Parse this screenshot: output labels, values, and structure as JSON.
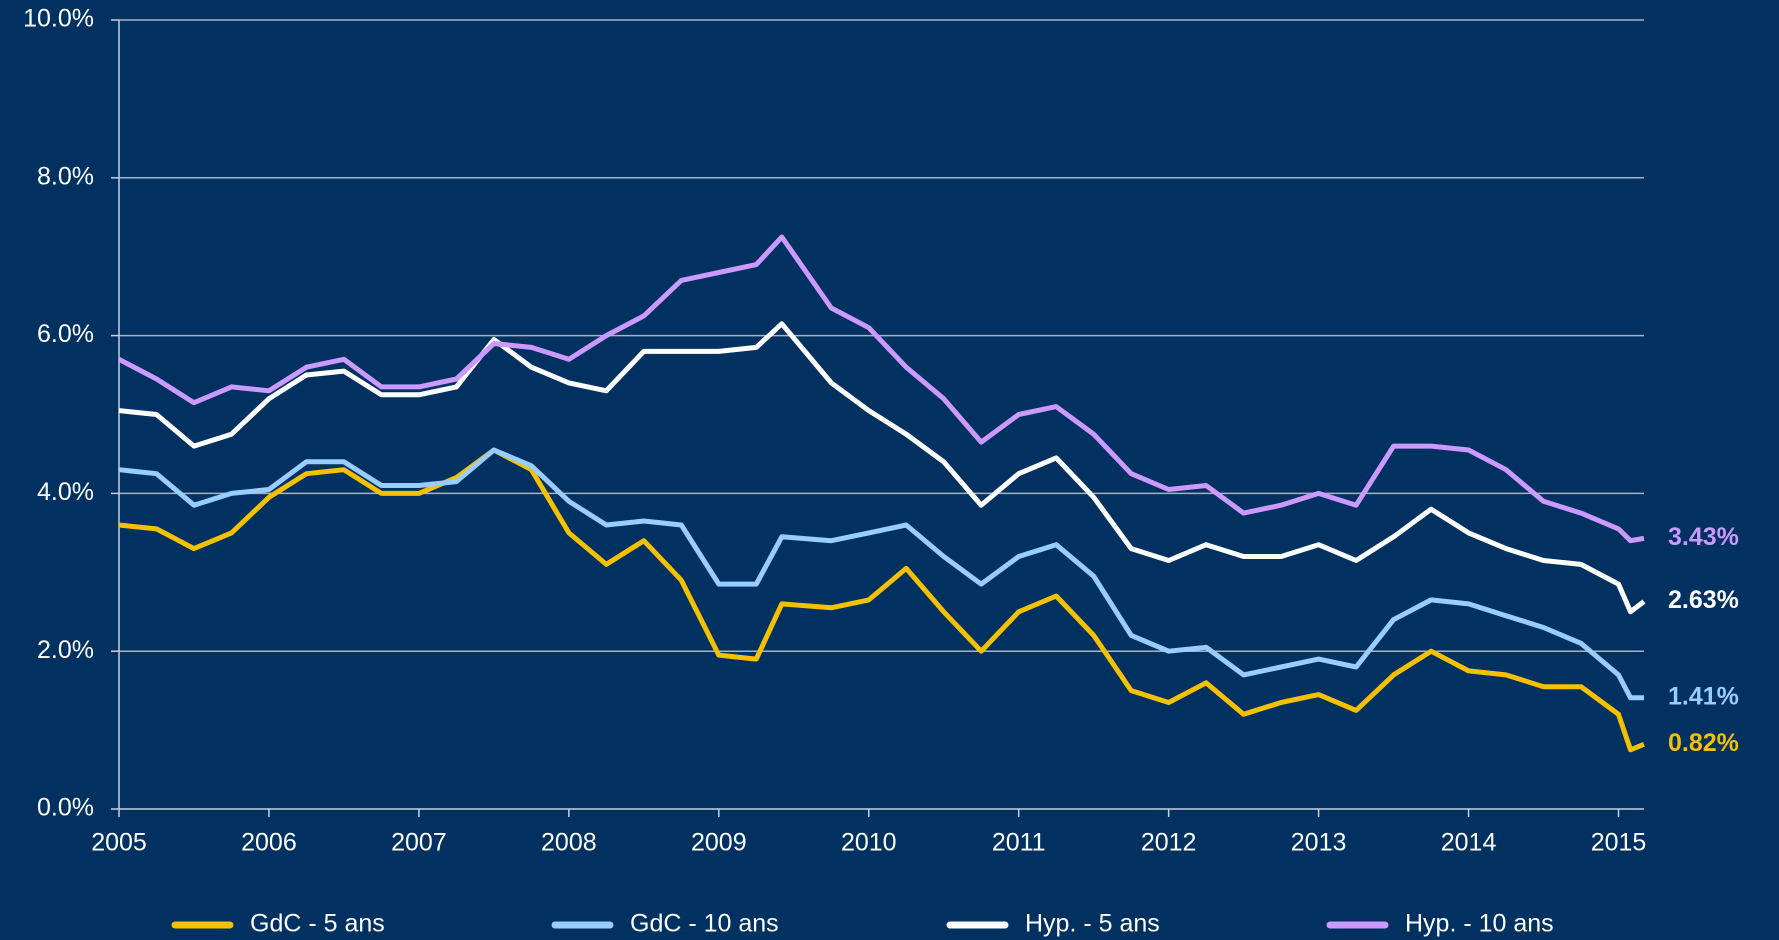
{
  "chart_data": {
    "type": "line",
    "x": [
      2005,
      2005.25,
      2005.5,
      2005.75,
      2006,
      2006.25,
      2006.5,
      2006.75,
      2007,
      2007.25,
      2007.5,
      2007.75,
      2008,
      2008.25,
      2008.5,
      2008.75,
      2009,
      2009.25,
      2009.42,
      2009.75,
      2010,
      2010.25,
      2010.5,
      2010.75,
      2011,
      2011.25,
      2011.5,
      2011.75,
      2012,
      2012.25,
      2012.5,
      2012.75,
      2013,
      2013.25,
      2013.5,
      2013.75,
      2014,
      2014.25,
      2014.5,
      2014.75,
      2015,
      2015.08,
      2015.17
    ],
    "series": [
      {
        "name": "GdC - 5 ans",
        "color": "#f5c000",
        "end_label": "0.82%",
        "values": [
          3.6,
          3.55,
          3.3,
          3.5,
          3.95,
          4.25,
          4.3,
          4.0,
          4.0,
          4.2,
          4.55,
          4.3,
          3.5,
          3.1,
          3.4,
          2.9,
          1.95,
          1.9,
          2.6,
          2.55,
          2.65,
          3.05,
          2.5,
          2.0,
          2.5,
          2.7,
          2.2,
          1.5,
          1.35,
          1.6,
          1.2,
          1.35,
          1.45,
          1.25,
          1.7,
          2.0,
          1.75,
          1.7,
          1.55,
          1.55,
          1.2,
          0.75,
          0.82
        ]
      },
      {
        "name": "GdC - 10 ans",
        "color": "#99ccff",
        "end_label": "1.41%",
        "values": [
          4.3,
          4.25,
          3.85,
          4.0,
          4.05,
          4.4,
          4.4,
          4.1,
          4.1,
          4.15,
          4.55,
          4.35,
          3.9,
          3.6,
          3.65,
          3.6,
          2.85,
          2.85,
          3.45,
          3.4,
          3.5,
          3.6,
          3.2,
          2.85,
          3.2,
          3.35,
          2.95,
          2.2,
          2.0,
          2.05,
          1.7,
          1.8,
          1.9,
          1.8,
          2.4,
          2.65,
          2.6,
          2.45,
          2.3,
          2.1,
          1.7,
          1.41,
          1.41
        ]
      },
      {
        "name": "Hyp. - 5 ans",
        "color": "#ffffff",
        "end_label": "2.63%",
        "values": [
          5.05,
          5.0,
          4.6,
          4.75,
          5.2,
          5.5,
          5.55,
          5.25,
          5.25,
          5.35,
          5.95,
          5.6,
          5.4,
          5.3,
          5.8,
          5.8,
          5.8,
          5.85,
          6.15,
          5.4,
          5.05,
          4.75,
          4.4,
          3.85,
          4.25,
          4.45,
          3.95,
          3.3,
          3.15,
          3.35,
          3.2,
          3.2,
          3.35,
          3.15,
          3.45,
          3.8,
          3.5,
          3.3,
          3.15,
          3.1,
          2.85,
          2.5,
          2.63
        ]
      },
      {
        "name": "Hyp. - 10 ans",
        "color": "#cc99ff",
        "end_label": "3.43%",
        "values": [
          5.7,
          5.45,
          5.15,
          5.35,
          5.3,
          5.6,
          5.7,
          5.35,
          5.35,
          5.45,
          5.9,
          5.85,
          5.7,
          6.0,
          6.25,
          6.7,
          6.8,
          6.9,
          7.25,
          6.35,
          6.1,
          5.6,
          5.2,
          4.65,
          5.0,
          5.1,
          4.75,
          4.25,
          4.05,
          4.1,
          3.75,
          3.85,
          4.0,
          3.85,
          4.6,
          4.6,
          4.55,
          4.3,
          3.9,
          3.75,
          3.55,
          3.4,
          3.43
        ]
      }
    ],
    "xlim": [
      2005,
      2015.17
    ],
    "xticks": [
      2005,
      2006,
      2007,
      2008,
      2009,
      2010,
      2011,
      2012,
      2013,
      2014,
      2015
    ],
    "ylim": [
      0,
      10
    ],
    "yticks": [
      {
        "value": 0,
        "label": "0.0%"
      },
      {
        "value": 2,
        "label": "2.0%"
      },
      {
        "value": 4,
        "label": "4.0%"
      },
      {
        "value": 6,
        "label": "6.0%"
      },
      {
        "value": 8,
        "label": "8.0%"
      },
      {
        "value": 10,
        "label": "10.0%"
      }
    ],
    "grid": true,
    "legend": "bottom"
  }
}
